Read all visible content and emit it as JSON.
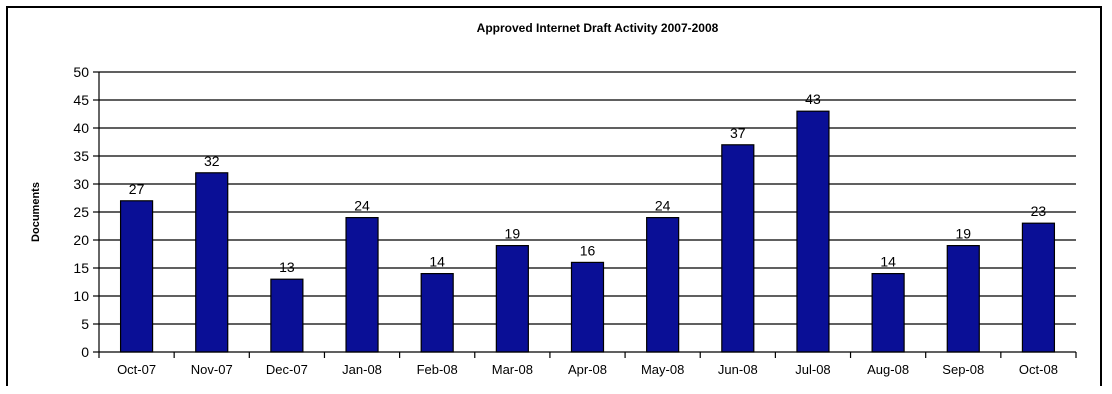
{
  "chart_data": {
    "type": "bar",
    "title": "Approved Internet Draft Activity 2007-2008",
    "ylabel": "Documents",
    "xlabel": "",
    "categories": [
      "Oct-07",
      "Nov-07",
      "Dec-07",
      "Jan-08",
      "Feb-08",
      "Mar-08",
      "Apr-08",
      "May-08",
      "Jun-08",
      "Jul-08",
      "Aug-08",
      "Sep-08",
      "Oct-08"
    ],
    "values": [
      27,
      32,
      13,
      24,
      14,
      19,
      16,
      24,
      37,
      43,
      14,
      19,
      23
    ],
    "ylim": [
      0,
      50
    ],
    "yticks": [
      0,
      5,
      10,
      15,
      20,
      25,
      30,
      35,
      40,
      45,
      50
    ],
    "grid": true,
    "legend": "none",
    "bar_color": "#0a0f96",
    "data_labels": true
  }
}
